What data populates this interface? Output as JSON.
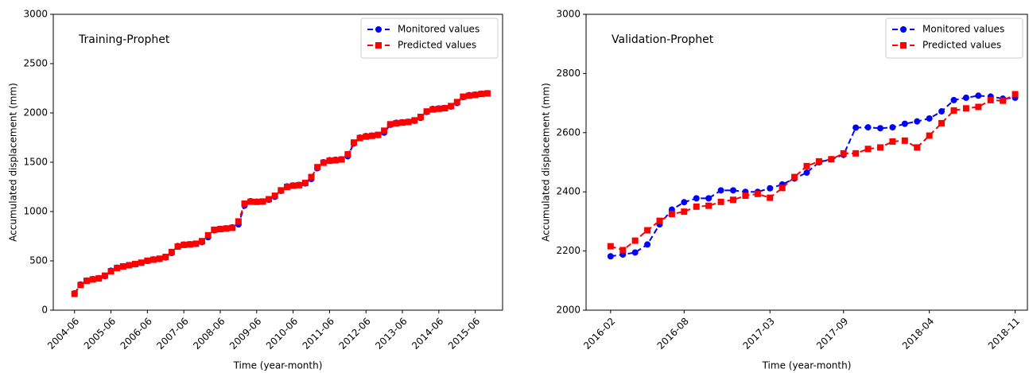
{
  "chart_data": [
    {
      "type": "line",
      "title": "Training-Prophet",
      "xlabel": "Time (year-month)",
      "ylabel": "Accumulated displacement (mm)",
      "x": [
        "2004-06",
        "2004-08",
        "2004-10",
        "2004-12",
        "2005-02",
        "2005-04",
        "2005-06",
        "2005-08",
        "2005-10",
        "2005-12",
        "2006-02",
        "2006-04",
        "2006-06",
        "2006-08",
        "2006-10",
        "2006-12",
        "2007-02",
        "2007-04",
        "2007-06",
        "2007-08",
        "2007-10",
        "2007-12",
        "2008-02",
        "2008-04",
        "2008-06",
        "2008-08",
        "2008-10",
        "2008-12",
        "2009-02",
        "2009-04",
        "2009-06",
        "2009-08",
        "2009-10",
        "2009-12",
        "2010-02",
        "2010-04",
        "2010-06",
        "2010-08",
        "2010-10",
        "2010-12",
        "2011-02",
        "2011-04",
        "2011-06",
        "2011-08",
        "2011-10",
        "2011-12",
        "2012-02",
        "2012-04",
        "2012-06",
        "2012-08",
        "2012-10",
        "2012-12",
        "2013-02",
        "2013-04",
        "2013-06",
        "2013-08",
        "2013-10",
        "2013-12",
        "2014-02",
        "2014-04",
        "2014-06",
        "2014-08",
        "2014-10",
        "2014-12",
        "2015-02",
        "2015-04",
        "2015-06",
        "2015-08",
        "2015-10"
      ],
      "series": [
        {
          "name": "Monitored values",
          "color": "#0000ff",
          "marker": "circle",
          "values": [
            170,
            260,
            300,
            315,
            325,
            345,
            400,
            430,
            445,
            455,
            465,
            480,
            500,
            515,
            520,
            535,
            580,
            650,
            665,
            668,
            672,
            690,
            740,
            810,
            825,
            830,
            840,
            870,
            1060,
            1105,
            1100,
            1100,
            1120,
            1150,
            1210,
            1255,
            1265,
            1270,
            1285,
            1330,
            1440,
            1500,
            1520,
            1525,
            1530,
            1560,
            1690,
            1750,
            1765,
            1770,
            1775,
            1800,
            1880,
            1900,
            1905,
            1910,
            1920,
            1950,
            2010,
            2040,
            2045,
            2050,
            2065,
            2100,
            2160,
            2180,
            2185,
            2195,
            2200
          ]
        },
        {
          "name": "Predicted values",
          "color": "#ff0000",
          "marker": "square",
          "values": [
            165,
            255,
            298,
            312,
            322,
            350,
            395,
            428,
            444,
            456,
            468,
            482,
            502,
            512,
            522,
            540,
            590,
            645,
            662,
            667,
            674,
            700,
            760,
            815,
            822,
            828,
            835,
            900,
            1080,
            1100,
            1098,
            1102,
            1125,
            1160,
            1215,
            1250,
            1262,
            1268,
            1290,
            1350,
            1450,
            1495,
            1515,
            1520,
            1528,
            1580,
            1700,
            1745,
            1760,
            1768,
            1778,
            1820,
            1885,
            1895,
            1902,
            1908,
            1925,
            1960,
            2015,
            2035,
            2042,
            2048,
            2070,
            2110,
            2165,
            2175,
            2183,
            2192,
            2198
          ]
        }
      ],
      "xlim": [
        "2003-11",
        "2016-03"
      ],
      "xticks": [
        "2004-06",
        "2005-06",
        "2006-06",
        "2007-06",
        "2008-06",
        "2009-06",
        "2010-06",
        "2011-06",
        "2012-06",
        "2013-06",
        "2014-06",
        "2015-06"
      ],
      "ylim": [
        0,
        3000
      ],
      "yticks": [
        0,
        500,
        1000,
        1500,
        2000,
        2500,
        3000
      ],
      "legend": "upper right"
    },
    {
      "type": "line",
      "title": "Validation-Prophet",
      "xlabel": "Time (year-month)",
      "ylabel": "Accumulated displacement (mm)",
      "x": [
        "2016-02",
        "2016-03",
        "2016-04",
        "2016-05",
        "2016-06",
        "2016-07",
        "2016-08",
        "2016-09",
        "2016-10",
        "2016-11",
        "2016-12",
        "2017-01",
        "2017-02",
        "2017-03",
        "2017-04",
        "2017-05",
        "2017-06",
        "2017-07",
        "2017-08",
        "2017-09",
        "2017-10",
        "2017-11",
        "2017-12",
        "2018-01",
        "2018-02",
        "2018-03",
        "2018-04",
        "2018-05",
        "2018-06",
        "2018-07",
        "2018-08",
        "2018-09",
        "2018-10",
        "2018-11"
      ],
      "series": [
        {
          "name": "Monitored values",
          "color": "#0000ff",
          "marker": "circle",
          "values": [
            2182,
            2188,
            2195,
            2222,
            2290,
            2340,
            2365,
            2378,
            2378,
            2405,
            2405,
            2400,
            2400,
            2412,
            2425,
            2445,
            2465,
            2500,
            2510,
            2525,
            2617,
            2618,
            2615,
            2618,
            2630,
            2638,
            2648,
            2672,
            2710,
            2718,
            2725,
            2722,
            2715,
            2718
          ]
        },
        {
          "name": "Predicted values",
          "color": "#ff0000",
          "marker": "square",
          "values": [
            2216,
            2203,
            2235,
            2270,
            2302,
            2325,
            2333,
            2350,
            2353,
            2366,
            2373,
            2387,
            2393,
            2380,
            2413,
            2450,
            2487,
            2503,
            2510,
            2530,
            2530,
            2545,
            2550,
            2570,
            2573,
            2550,
            2590,
            2632,
            2675,
            2682,
            2687,
            2710,
            2708,
            2730
          ]
        }
      ],
      "xlim": [
        "2015-12",
        "2018-12"
      ],
      "xticks": [
        "2016-02",
        "2016-08",
        "2017-03",
        "2017-09",
        "2018-04",
        "2018-11"
      ],
      "ylim": [
        2000,
        3000
      ],
      "yticks": [
        2000,
        2200,
        2400,
        2600,
        2800,
        3000
      ],
      "legend": "upper right"
    }
  ]
}
